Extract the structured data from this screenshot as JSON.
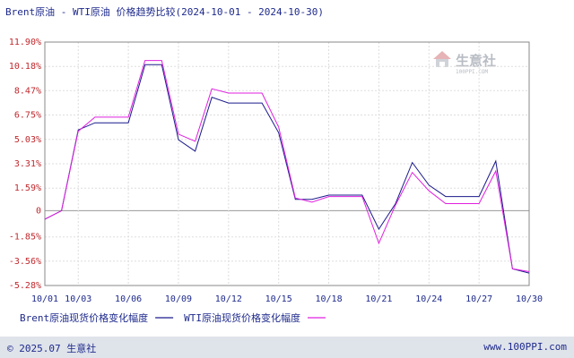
{
  "chart_data": {
    "type": "line",
    "title": "Brent原油 - WTI原油 价格趋势比较(2024-10-01 - 2024-10-30)",
    "y_ticks": [
      "11.90%",
      "10.18%",
      "8.47%",
      "6.75%",
      "5.03%",
      "3.31%",
      "1.59%",
      "0",
      "-1.85%",
      "-3.56%",
      "-5.28%"
    ],
    "ylim": [
      -5.28,
      11.9
    ],
    "x_labels": [
      "10/01",
      "10/03",
      "10/06",
      "10/09",
      "10/12",
      "10/15",
      "10/18",
      "10/21",
      "10/24",
      "10/27",
      "10/30"
    ],
    "x_label_days": [
      1,
      3,
      6,
      9,
      12,
      15,
      18,
      21,
      24,
      27,
      30
    ],
    "xlim": [
      1,
      30
    ],
    "grid": true,
    "legend_position": "bottom",
    "series": [
      {
        "name": "Brent原油现货价格变化幅度",
        "color": "#1a1a8c",
        "points": [
          [
            1,
            -0.6
          ],
          [
            2,
            0.0
          ],
          [
            3,
            5.7
          ],
          [
            4,
            6.2
          ],
          [
            5,
            6.2
          ],
          [
            6,
            6.2
          ],
          [
            7,
            10.3
          ],
          [
            8,
            10.3
          ],
          [
            9,
            5.0
          ],
          [
            10,
            4.2
          ],
          [
            11,
            8.0
          ],
          [
            12,
            7.6
          ],
          [
            13,
            7.6
          ],
          [
            14,
            7.6
          ],
          [
            15,
            5.5
          ],
          [
            16,
            0.8
          ],
          [
            17,
            0.8
          ],
          [
            18,
            1.1
          ],
          [
            19,
            1.1
          ],
          [
            20,
            1.1
          ],
          [
            21,
            -1.3
          ],
          [
            22,
            0.5
          ],
          [
            23,
            3.4
          ],
          [
            24,
            1.8
          ],
          [
            25,
            1.0
          ],
          [
            26,
            1.0
          ],
          [
            27,
            1.0
          ],
          [
            28,
            3.5
          ],
          [
            29,
            -4.1
          ],
          [
            30,
            -4.4
          ]
        ]
      },
      {
        "name": "WTI原油现货价格变化幅度",
        "color": "#e020e0",
        "points": [
          [
            1,
            -0.6
          ],
          [
            2,
            0.0
          ],
          [
            3,
            5.6
          ],
          [
            4,
            6.6
          ],
          [
            5,
            6.6
          ],
          [
            6,
            6.6
          ],
          [
            7,
            10.6
          ],
          [
            8,
            10.6
          ],
          [
            9,
            5.4
          ],
          [
            10,
            4.9
          ],
          [
            11,
            8.6
          ],
          [
            12,
            8.3
          ],
          [
            13,
            8.3
          ],
          [
            14,
            8.3
          ],
          [
            15,
            5.9
          ],
          [
            16,
            0.9
          ],
          [
            17,
            0.6
          ],
          [
            18,
            1.0
          ],
          [
            19,
            1.0
          ],
          [
            20,
            1.0
          ],
          [
            21,
            -2.3
          ],
          [
            22,
            0.4
          ],
          [
            23,
            2.7
          ],
          [
            24,
            1.4
          ],
          [
            25,
            0.5
          ],
          [
            26,
            0.5
          ],
          [
            27,
            0.5
          ],
          [
            28,
            2.8
          ],
          [
            29,
            -4.1
          ],
          [
            30,
            -4.3
          ]
        ]
      }
    ]
  },
  "footer": {
    "copyright": "© 2025.07 生意社",
    "site": "www.100PPI.com"
  },
  "watermark": {
    "name": "生意社",
    "sub": "100PPI.COM"
  }
}
